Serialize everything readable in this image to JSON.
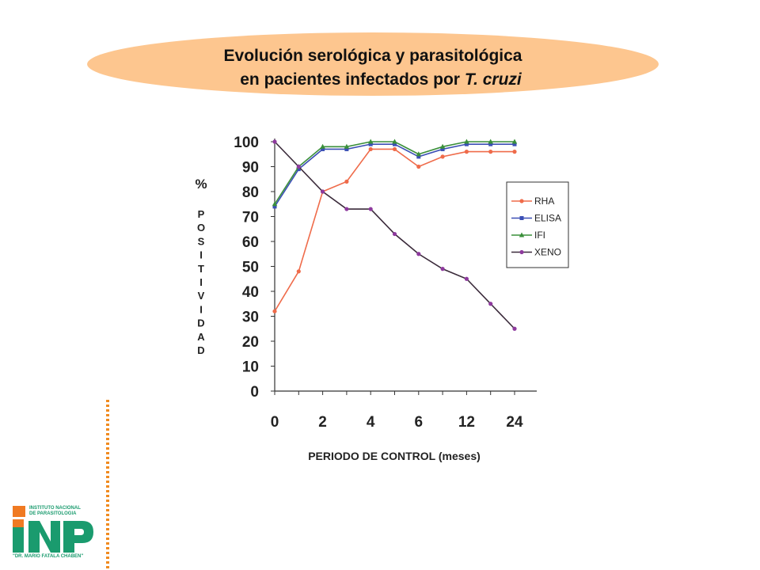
{
  "slide": {
    "title_line1": "Evolución serológica y parasitológica",
    "title_line2_prefix": "en pacientes infectados por ",
    "title_line2_italic": "T. cruzi"
  },
  "logo": {
    "line1": "INSTITUTO NACIONAL",
    "line2": "DE PARASITOLOGIA",
    "line3": "\"DR. MARIO FATALA CHABEN\"",
    "mark": "INP",
    "colors": {
      "green": "#1a9b6e",
      "orange": "#f07a22"
    }
  },
  "chart_data": {
    "type": "line",
    "title": "",
    "xlabel": "PERIODO DE CONTROL (meses)",
    "ylabel": "% POSITIVIDAD",
    "ylabel_symbol": "%",
    "ylabel_word": "POSITIVIDAD",
    "ylim": [
      0,
      100
    ],
    "yticks": [
      0,
      10,
      20,
      30,
      40,
      50,
      60,
      70,
      80,
      90,
      100
    ],
    "x_tick_labels": [
      "0",
      "2",
      "4",
      "6",
      "12",
      "24"
    ],
    "x_tick_label_positions": [
      0,
      2,
      4,
      6,
      8,
      10
    ],
    "x_points": [
      0,
      1,
      2,
      3,
      4,
      5,
      6,
      7,
      8,
      9,
      10
    ],
    "grid": false,
    "legend_position": "right",
    "series": [
      {
        "name": "RHA",
        "color": "#ef6b4a",
        "marker": "circle",
        "values": [
          32,
          48,
          80,
          84,
          97,
          97,
          90,
          94,
          96,
          96,
          96
        ]
      },
      {
        "name": "ELISA",
        "color": "#3b4fb5",
        "marker": "square",
        "values": [
          74,
          89,
          97,
          97,
          99,
          99,
          94,
          97,
          99,
          99,
          99
        ]
      },
      {
        "name": "IFI",
        "color": "#3a8f3a",
        "marker": "triangle",
        "values": [
          75,
          90,
          98,
          98,
          100,
          100,
          95,
          98,
          100,
          100,
          100
        ]
      },
      {
        "name": "XENO",
        "color": "#3a2a3a",
        "marker": "circle",
        "marker_color": "#8e3a9e",
        "values": [
          100,
          90,
          80,
          73,
          73,
          63,
          55,
          49,
          45,
          35,
          25
        ]
      }
    ]
  }
}
